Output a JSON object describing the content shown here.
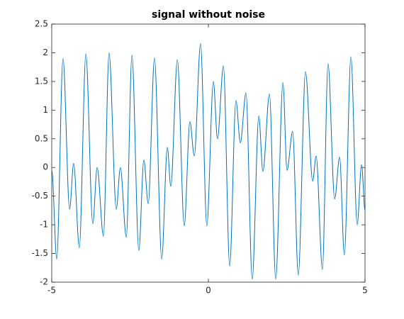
{
  "chart_data": {
    "type": "line",
    "title": "signal without noise",
    "x": [
      -5.0,
      -4.84,
      -4.64,
      -4.43,
      -4.3,
      -4.12,
      -3.91,
      -3.69,
      -3.55,
      -3.35,
      -3.17,
      -2.94,
      -2.81,
      -2.62,
      -2.44,
      -2.22,
      -2.06,
      -1.92,
      -1.72,
      -1.49,
      -1.31,
      -1.2,
      -0.99,
      -0.77,
      -0.59,
      -0.45,
      -0.25,
      -0.05,
      0.16,
      0.29,
      0.48,
      0.68,
      0.88,
      1.02,
      1.2,
      1.4,
      1.61,
      1.74,
      1.95,
      2.15,
      2.38,
      2.51,
      2.69,
      2.87,
      3.1,
      3.33,
      3.44,
      3.64,
      3.82,
      4.03,
      4.19,
      4.34,
      4.55,
      4.75,
      4.89,
      5.0
    ],
    "series": [
      {
        "color": "#0072bd",
        "values": [
          -0.04,
          -1.6,
          1.9,
          -0.73,
          0.07,
          -1.4,
          1.98,
          -0.98,
          0.0,
          -1.2,
          2.0,
          -0.73,
          0.0,
          -1.22,
          1.96,
          -1.45,
          0.13,
          -0.63,
          1.91,
          -1.6,
          0.35,
          -0.33,
          1.88,
          -1.02,
          0.8,
          0.2,
          2.16,
          -1.02,
          1.5,
          0.5,
          1.77,
          -1.72,
          1.17,
          0.43,
          1.3,
          -1.95,
          0.9,
          -0.07,
          1.28,
          -1.95,
          1.48,
          -0.05,
          0.63,
          -1.88,
          1.67,
          -0.24,
          0.2,
          -1.78,
          1.81,
          -0.55,
          0.18,
          -1.53,
          1.93,
          -1.0,
          0.05,
          -0.75
        ]
      }
    ],
    "xlim": [
      -5,
      5
    ],
    "xticks": [
      -5,
      0,
      5
    ],
    "ylim": [
      -2,
      2.5
    ],
    "yticks": [
      -2,
      -1.5,
      -1,
      -0.5,
      0,
      0.5,
      1,
      1.5,
      2,
      2.5
    ]
  }
}
